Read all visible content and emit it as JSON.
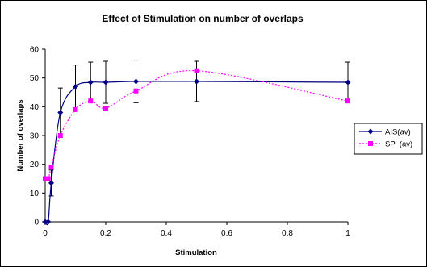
{
  "chart_data": {
    "type": "line",
    "title": "Effect of Stimulation on number of overlaps",
    "xlabel": "Stimulation",
    "ylabel": "Number of overlaps",
    "xlim": [
      0,
      1
    ],
    "ylim": [
      0,
      60
    ],
    "x_ticks": [
      "0",
      "0.2",
      "0.4",
      "0.6",
      "0.8",
      "1"
    ],
    "y_ticks": [
      "0",
      "10",
      "20",
      "30",
      "40",
      "50",
      "60"
    ],
    "x_tick_values": [
      0,
      0.2,
      0.4,
      0.6,
      0.8,
      1
    ],
    "y_tick_values": [
      0,
      10,
      20,
      30,
      40,
      50,
      60
    ],
    "grid": false,
    "legend_position": "right",
    "series": [
      {
        "name": "AIS(av)",
        "color": "#000080",
        "line_style": "solid",
        "marker": "diamond",
        "x": [
          0,
          0.01,
          0.02,
          0.05,
          0.1,
          0.15,
          0.2,
          0.3,
          0.5,
          1
        ],
        "y": [
          0,
          0,
          13.5,
          38,
          47,
          48.5,
          48.5,
          48.8,
          48.8,
          48.5
        ],
        "error": [
          0,
          0,
          4.5,
          8.5,
          7.5,
          7,
          7.3,
          7.4,
          7,
          7
        ]
      },
      {
        "name": "SP  (av)",
        "color": "#ff00ff",
        "line_style": "dotted",
        "marker": "square",
        "x": [
          0,
          0.01,
          0.02,
          0.05,
          0.1,
          0.15,
          0.2,
          0.3,
          0.5,
          1
        ],
        "y": [
          15,
          15,
          19,
          30,
          39,
          42,
          39.5,
          45.5,
          52.5,
          42
        ],
        "error": null
      }
    ]
  }
}
